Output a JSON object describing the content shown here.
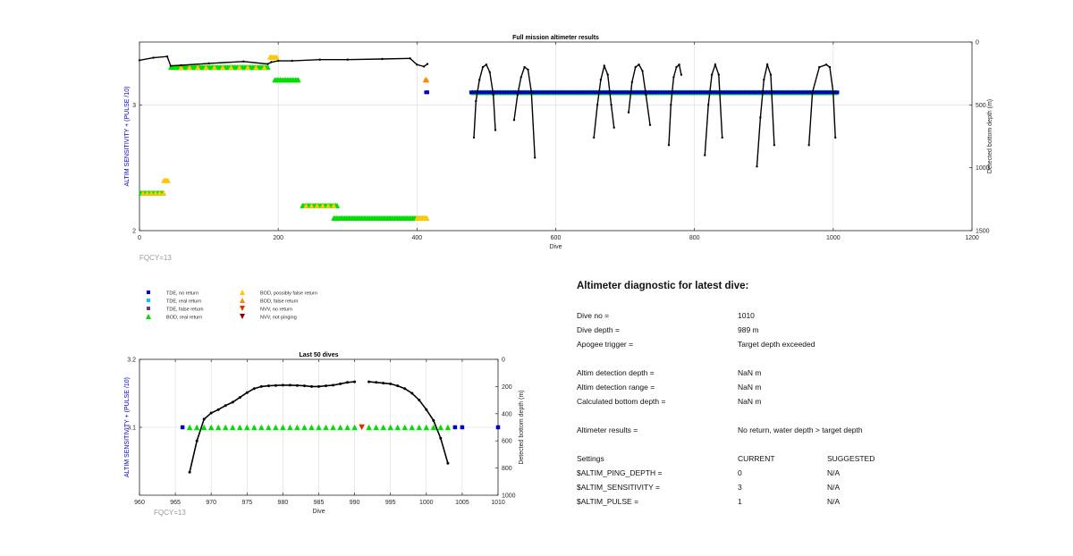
{
  "colors": {
    "axis": "#262626",
    "grid": "#dcdcdc",
    "left_label": "#0000c8",
    "fqcy": "#9a9a9a",
    "tde_no_return": "#0000c8",
    "tde_real_return": "#00c8ff",
    "tde_false_return": "#7030a0",
    "bod_real_return": "#00e000",
    "bod_possibly_false": "#ffc800",
    "bod_false_return": "#ff8c00",
    "nvv_no_return": "#e03000",
    "nvv_not_pinging": "#8b0000",
    "depth_line": "#000000"
  },
  "chart_data": [
    {
      "name": "full_mission",
      "type": "scatter",
      "title": "Full mission altimeter results",
      "xlabel": "Dive",
      "ylabel_left": "ALTIM SENSITIVITY + (PULSE /10)",
      "ylabel_right": "Detected bottom depth (m)",
      "xlim": [
        0,
        1200
      ],
      "ylim_left": [
        2,
        3.5
      ],
      "ylim_right": [
        1500,
        0
      ],
      "x_ticks": [
        "0",
        "200",
        "400",
        "600",
        "800",
        "1000",
        "1200"
      ],
      "y_left_ticks": [
        "2",
        "3"
      ],
      "y_right_ticks": [
        "0",
        "500",
        "1000",
        "1500"
      ],
      "annotation": "FQCY=13",
      "grid": true,
      "marker_bands": [
        {
          "series": "bod_real_return",
          "y": 3.3,
          "x_start": 45,
          "x_end": 185
        },
        {
          "series": "bod_possibly_false",
          "y": 3.3,
          "x_start": 60,
          "x_end": 190,
          "step": 12
        },
        {
          "series": "bod_real_return",
          "y": 3.2,
          "x_start": 195,
          "x_end": 230
        },
        {
          "series": "bod_real_return",
          "y": 2.3,
          "x_start": 2,
          "x_end": 35
        },
        {
          "series": "bod_possibly_false",
          "y": 2.3,
          "x_start": 5,
          "x_end": 35,
          "step": 6
        },
        {
          "series": "bod_possibly_false",
          "y": 2.4,
          "x_start": 35,
          "x_end": 42
        },
        {
          "series": "bod_real_return",
          "y": 2.2,
          "x_start": 235,
          "x_end": 285
        },
        {
          "series": "bod_possibly_false",
          "y": 2.2,
          "x_start": 240,
          "x_end": 280,
          "step": 8
        },
        {
          "series": "bod_real_return",
          "y": 2.1,
          "x_start": 280,
          "x_end": 415
        },
        {
          "series": "bod_possibly_false",
          "y": 2.1,
          "x_start": 400,
          "x_end": 415
        },
        {
          "series": "bod_possibly_false",
          "y": 3.38,
          "x_start": 188,
          "x_end": 198
        },
        {
          "series": "bod_false_return",
          "y": 3.2,
          "x_start": 412,
          "x_end": 414
        },
        {
          "series": "tde_no_return",
          "y": 3.1,
          "x_start": 413,
          "x_end": 415
        },
        {
          "series": "bod_real_return",
          "y": 3.1,
          "x_start": 480,
          "x_end": 1005
        },
        {
          "series": "tde_no_return",
          "y": 3.1,
          "x_start": 478,
          "x_end": 1006,
          "step": 4
        }
      ],
      "depth_series": [
        {
          "x": [
            0,
            20,
            40,
            45,
            60,
            100,
            150,
            185,
            190,
            200,
            220,
            260,
            300,
            350,
            390,
            400,
            410,
            415
          ],
          "y": [
            145,
            125,
            115,
            190,
            185,
            170,
            155,
            175,
            160,
            150,
            150,
            140,
            140,
            135,
            130,
            180,
            195,
            175
          ]
        },
        {
          "x": [
            482,
            485,
            490,
            495,
            500,
            505,
            510,
            513
          ],
          "y": [
            760,
            470,
            300,
            200,
            180,
            240,
            420,
            700
          ]
        },
        {
          "x": [
            540,
            545,
            550,
            555,
            560,
            565,
            570
          ],
          "y": [
            620,
            420,
            280,
            200,
            220,
            400,
            920
          ]
        },
        {
          "x": [
            655,
            660,
            665,
            670,
            675,
            680,
            684
          ],
          "y": [
            760,
            500,
            300,
            190,
            260,
            500,
            680
          ]
        },
        {
          "x": [
            705,
            710,
            715,
            720,
            725,
            730,
            736
          ],
          "y": [
            560,
            320,
            200,
            180,
            230,
            420,
            660
          ]
        },
        {
          "x": [
            763,
            766,
            770,
            774,
            778,
            781
          ],
          "y": [
            820,
            500,
            280,
            200,
            180,
            260
          ]
        },
        {
          "x": [
            815,
            820,
            825,
            830,
            835,
            840
          ],
          "y": [
            900,
            500,
            260,
            180,
            260,
            760
          ]
        },
        {
          "x": [
            890,
            895,
            900,
            905,
            910,
            915
          ],
          "y": [
            990,
            600,
            300,
            180,
            260,
            820
          ]
        },
        {
          "x": [
            965,
            970,
            980,
            990,
            995,
            1000,
            1003
          ],
          "y": [
            820,
            400,
            200,
            180,
            200,
            400,
            760
          ]
        }
      ]
    },
    {
      "name": "last_50",
      "type": "scatter",
      "title": "Last 50 dives",
      "xlabel": "Dive",
      "ylabel_left": "ALTIM SENSITIVITY + (PULSE /10)",
      "ylabel_right": "Detected bottom depth (m)",
      "xlim": [
        960,
        1010
      ],
      "ylim_left": [
        3,
        3.2
      ],
      "ylim_right": [
        1000,
        0
      ],
      "x_ticks": [
        "960",
        "965",
        "970",
        "975",
        "980",
        "985",
        "990",
        "995",
        "1000",
        "1005",
        "1010"
      ],
      "y_left_ticks": [
        "3.2",
        "3.1"
      ],
      "y_right_ticks": [
        "0",
        "200",
        "400",
        "600",
        "800",
        "1000"
      ],
      "annotation": "FQCY=13",
      "grid": true,
      "points_tde_no_return": [
        966,
        1004,
        1005,
        1010
      ],
      "points_bod_real_return": [
        967,
        968,
        969,
        970,
        971,
        972,
        973,
        974,
        975,
        976,
        977,
        978,
        979,
        980,
        981,
        982,
        983,
        984,
        985,
        986,
        987,
        988,
        989,
        990,
        992,
        993,
        994,
        995,
        996,
        997,
        998,
        999,
        1000,
        1001,
        1002,
        1003
      ],
      "points_nvv_no_return": [
        991
      ],
      "depth_series": [
        {
          "x": [
            967,
            968,
            969,
            970,
            971,
            972,
            973,
            974,
            975,
            976,
            977,
            978,
            979,
            980,
            981,
            982,
            983,
            984,
            985,
            986,
            987,
            988,
            989,
            990
          ],
          "y": [
            830,
            600,
            440,
            395,
            370,
            340,
            315,
            280,
            245,
            215,
            200,
            195,
            192,
            190,
            190,
            192,
            195,
            200,
            200,
            195,
            190,
            180,
            170,
            165
          ]
        },
        {
          "x": [
            992,
            993,
            994,
            995,
            996,
            997,
            998,
            999,
            1000,
            1001,
            1002,
            1003
          ],
          "y": [
            165,
            170,
            175,
            180,
            195,
            215,
            250,
            300,
            370,
            450,
            580,
            765
          ]
        }
      ],
      "y_level": 3.1
    }
  ],
  "legend": {
    "col1": [
      {
        "key": "tde_no_return",
        "marker": "square",
        "label": "TDE, no return"
      },
      {
        "key": "tde_real_return",
        "marker": "square",
        "label": "TDE, real return"
      },
      {
        "key": "tde_false_return",
        "marker": "square",
        "label": "TDE, false return"
      },
      {
        "key": "bod_real_return",
        "marker": "triangle-up",
        "label": "BOD, real return"
      }
    ],
    "col2": [
      {
        "key": "bod_possibly_false",
        "marker": "triangle-up",
        "label": "BOD, possibly false return"
      },
      {
        "key": "bod_false_return",
        "marker": "triangle-up",
        "label": "BOD, false return"
      },
      {
        "key": "nvv_no_return",
        "marker": "triangle-down",
        "label": "NVV, no return"
      },
      {
        "key": "nvv_not_pinging",
        "marker": "triangle-down",
        "label": "NVV, not pinging"
      }
    ]
  },
  "diagnostic": {
    "title": "Altimeter diagnostic for latest dive:",
    "rows": [
      {
        "label": "Dive no =",
        "value": "1010",
        "extra": ""
      },
      {
        "label": "Dive depth =",
        "value": "989 m",
        "extra": ""
      },
      {
        "label": "Apogee trigger =",
        "value": "Target depth exceeded",
        "extra": ""
      },
      {
        "label": "Altim detection depth =",
        "value": "NaN m",
        "extra": ""
      },
      {
        "label": "Altim detection range =",
        "value": "NaN m",
        "extra": ""
      },
      {
        "label": "Calculated bottom depth =",
        "value": "NaN m",
        "extra": ""
      },
      {
        "label": "Altimeter results =",
        "value": "No return, water depth > target depth",
        "extra": ""
      },
      {
        "label": "Settings",
        "value": "CURRENT",
        "extra": "SUGGESTED"
      },
      {
        "label": "$ALTIM_PING_DEPTH =",
        "value": "0",
        "extra": "N/A"
      },
      {
        "label": "$ALTIM_SENSITIVITY =",
        "value": "3",
        "extra": "N/A"
      },
      {
        "label": "$ALTIM_PULSE =",
        "value": "1",
        "extra": "N/A"
      }
    ]
  }
}
